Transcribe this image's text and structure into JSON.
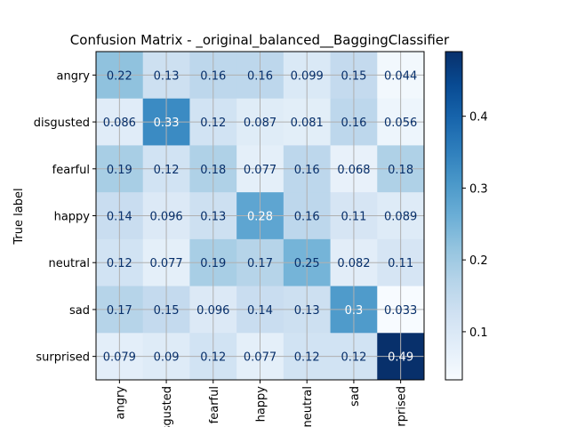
{
  "chart_data": {
    "type": "heatmap",
    "title": "Confusion Matrix - _original_balanced__BaggingClassifier",
    "ylabel": "True label",
    "xlabel": "",
    "row_labels": [
      "angry",
      "disgusted",
      "fearful",
      "happy",
      "neutral",
      "sad",
      "surprised"
    ],
    "col_labels": [
      "angry",
      "disgusted",
      "fearful",
      "happy",
      "neutral",
      "sad",
      "surprised"
    ],
    "values": [
      [
        0.22,
        0.13,
        0.16,
        0.16,
        0.099,
        0.15,
        0.044
      ],
      [
        0.086,
        0.33,
        0.12,
        0.087,
        0.081,
        0.16,
        0.056
      ],
      [
        0.19,
        0.12,
        0.18,
        0.077,
        0.16,
        0.068,
        0.18
      ],
      [
        0.14,
        0.096,
        0.13,
        0.28,
        0.16,
        0.11,
        0.089
      ],
      [
        0.12,
        0.077,
        0.19,
        0.17,
        0.25,
        0.082,
        0.11
      ],
      [
        0.17,
        0.15,
        0.096,
        0.14,
        0.13,
        0.3,
        0.033
      ],
      [
        0.079,
        0.09,
        0.12,
        0.077,
        0.12,
        0.12,
        0.49
      ]
    ],
    "colormap": "Blues",
    "color_range": [
      0.033,
      0.49
    ],
    "colorbar_ticks": [
      "0.1",
      "0.2",
      "0.3",
      "0.4"
    ],
    "colorbar_tick_values": [
      0.1,
      0.2,
      0.3,
      0.4
    ],
    "grid": true,
    "x_tick_rotation": "vertical"
  }
}
